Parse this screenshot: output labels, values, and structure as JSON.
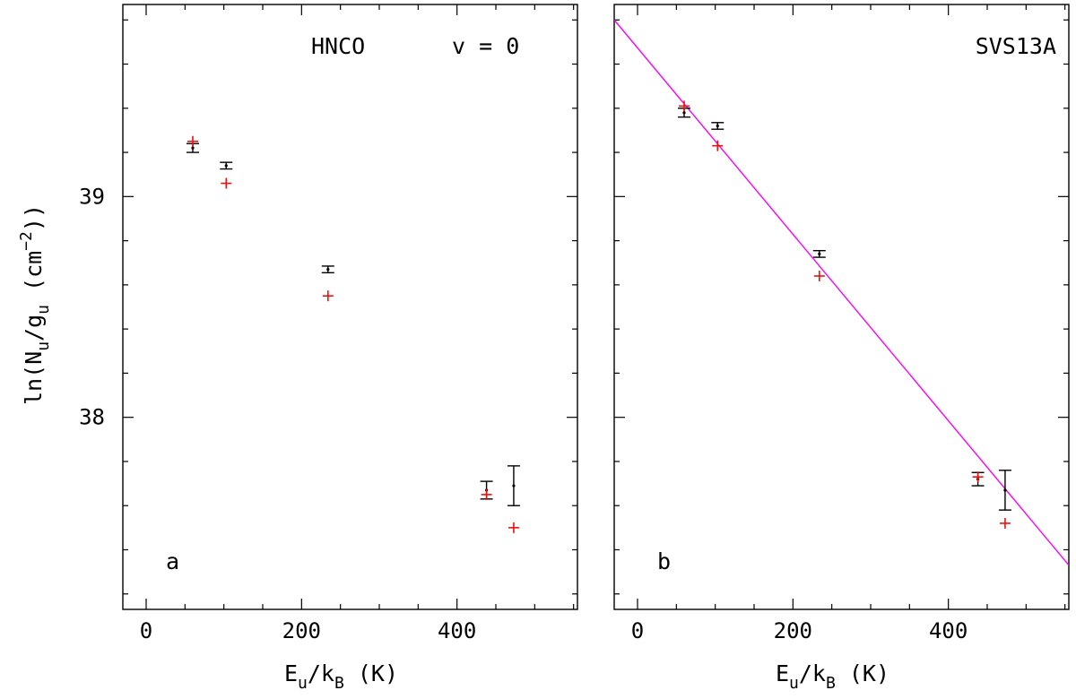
{
  "chart_data": [
    {
      "panel": "a",
      "type": "scatter",
      "title": "",
      "annotations": {
        "molecule": "HNCO",
        "state": "v = 0",
        "panel_label": "a"
      },
      "xlabel": "E_u/k_B (K)",
      "ylabel": "ln(N_u/g_u (cm^-2))",
      "xlim": [
        -30,
        555
      ],
      "ylim": [
        37.13,
        39.87
      ],
      "x_ticks": [
        0,
        200,
        400
      ],
      "y_ticks": [
        38,
        39
      ],
      "observed": [
        {
          "x": 60,
          "y": 39.22,
          "err": 0.02
        },
        {
          "x": 103,
          "y": 39.14,
          "err": 0.015
        },
        {
          "x": 234,
          "y": 38.67,
          "err": 0.015
        },
        {
          "x": 438,
          "y": 37.67,
          "err": 0.04
        },
        {
          "x": 473,
          "y": 37.69,
          "err": 0.09
        }
      ],
      "model": [
        {
          "x": 60,
          "y": 39.25
        },
        {
          "x": 103,
          "y": 39.06
        },
        {
          "x": 234,
          "y": 38.55
        },
        {
          "x": 438,
          "y": 37.65
        },
        {
          "x": 473,
          "y": 37.5
        }
      ],
      "colors": {
        "observed": "#000000",
        "model": "#e8130f"
      }
    },
    {
      "panel": "b",
      "type": "scatter",
      "title": "",
      "annotations": {
        "source": "SVS13A",
        "panel_label": "b"
      },
      "xlabel": "E_u/k_B (K)",
      "ylabel": "",
      "xlim": [
        -30,
        555
      ],
      "ylim": [
        37.13,
        39.87
      ],
      "x_ticks": [
        0,
        200,
        400
      ],
      "y_ticks": [],
      "observed": [
        {
          "x": 60,
          "y": 39.38,
          "err": 0.02
        },
        {
          "x": 103,
          "y": 39.32,
          "err": 0.015
        },
        {
          "x": 234,
          "y": 38.74,
          "err": 0.015
        },
        {
          "x": 438,
          "y": 37.72,
          "err": 0.03
        },
        {
          "x": 473,
          "y": 37.67,
          "err": 0.09
        }
      ],
      "model": [
        {
          "x": 60,
          "y": 39.41
        },
        {
          "x": 103,
          "y": 39.23
        },
        {
          "x": 234,
          "y": 38.64
        },
        {
          "x": 438,
          "y": 37.73
        },
        {
          "x": 473,
          "y": 37.52
        }
      ],
      "fit_line": {
        "x": [
          -30,
          555
        ],
        "y": [
          39.8,
          37.33
        ]
      },
      "colors": {
        "observed": "#000000",
        "model": "#e8130f",
        "fit_line": "#ff00ff"
      }
    }
  ]
}
